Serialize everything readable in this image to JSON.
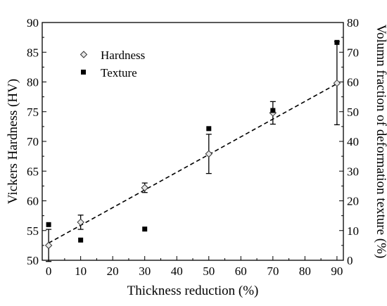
{
  "chart_data": {
    "type": "scatter",
    "xlabel": "Thickness reduction (%)",
    "ylabel": "Vickers Hardness (HV)",
    "y2label": "Volumn fraction of deformation texture (%)",
    "xlim": [
      -2,
      92
    ],
    "ylim": [
      50,
      90
    ],
    "y2lim": [
      0,
      80
    ],
    "xticks": [
      "0",
      "10",
      "20",
      "30",
      "40",
      "50",
      "60",
      "70",
      "80",
      "90"
    ],
    "yticks": [
      "50",
      "55",
      "60",
      "65",
      "70",
      "75",
      "80",
      "85",
      "90"
    ],
    "y2ticks": [
      "0",
      "10",
      "20",
      "30",
      "40",
      "50",
      "60",
      "70",
      "80"
    ],
    "legend_position": "upper-left",
    "series": [
      {
        "name": "Hardness",
        "axis": "left",
        "marker": "open-diamond",
        "x": [
          0,
          10,
          30,
          50,
          70,
          90
        ],
        "y": [
          52.5,
          56.4,
          62.2,
          67.9,
          74.8,
          79.8
        ],
        "error": [
          2.7,
          1.2,
          0.8,
          3.3,
          1.9,
          7.0
        ]
      },
      {
        "name": "Texture",
        "axis": "right",
        "marker": "filled-square",
        "x": [
          0,
          10,
          30,
          50,
          70,
          90
        ],
        "y": [
          12.0,
          6.8,
          10.5,
          44.3,
          50.4,
          73.3
        ]
      }
    ],
    "fit_line": {
      "style": "dashed",
      "x": [
        0,
        90
      ],
      "y": [
        52.9,
        79.7
      ]
    }
  }
}
